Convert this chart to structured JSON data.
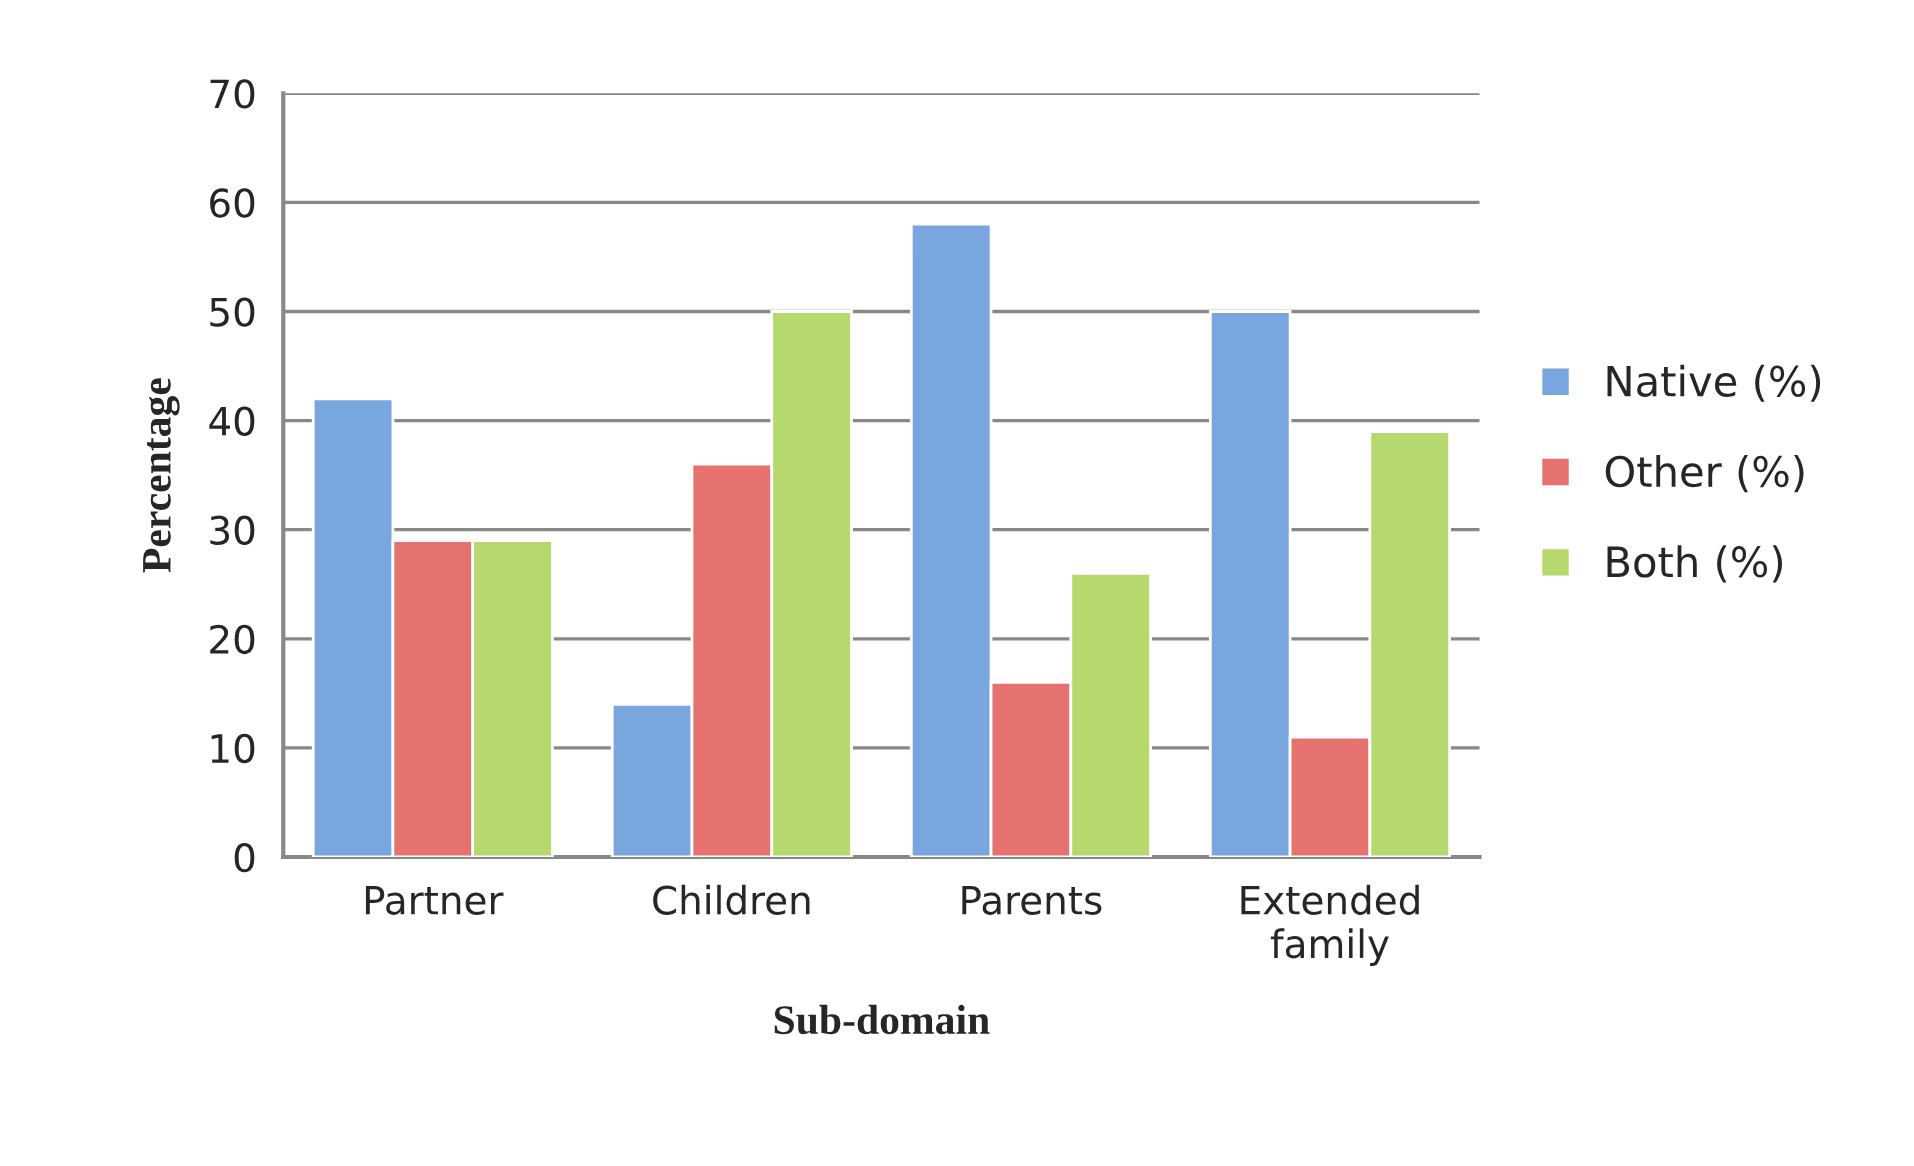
{
  "chart_data": {
    "type": "bar",
    "xlabel": "Sub-domain",
    "ylabel": "Percentage",
    "categories": [
      "Partner",
      "Children",
      "Parents",
      "Extended\nfamily"
    ],
    "series": [
      {
        "name": "Native (%)",
        "color": "#7aa6df",
        "values": [
          42,
          14,
          58,
          50
        ]
      },
      {
        "name": "Other (%)",
        "color": "#e5726f",
        "values": [
          29,
          36,
          16,
          11
        ]
      },
      {
        "name": "Both (%)",
        "color": "#b7d86e",
        "values": [
          29,
          50,
          26,
          39
        ]
      }
    ],
    "ylim": [
      0,
      70
    ],
    "yticks": [
      0,
      10,
      20,
      30,
      40,
      50,
      60,
      70
    ],
    "grid": "y",
    "legend": "right"
  }
}
